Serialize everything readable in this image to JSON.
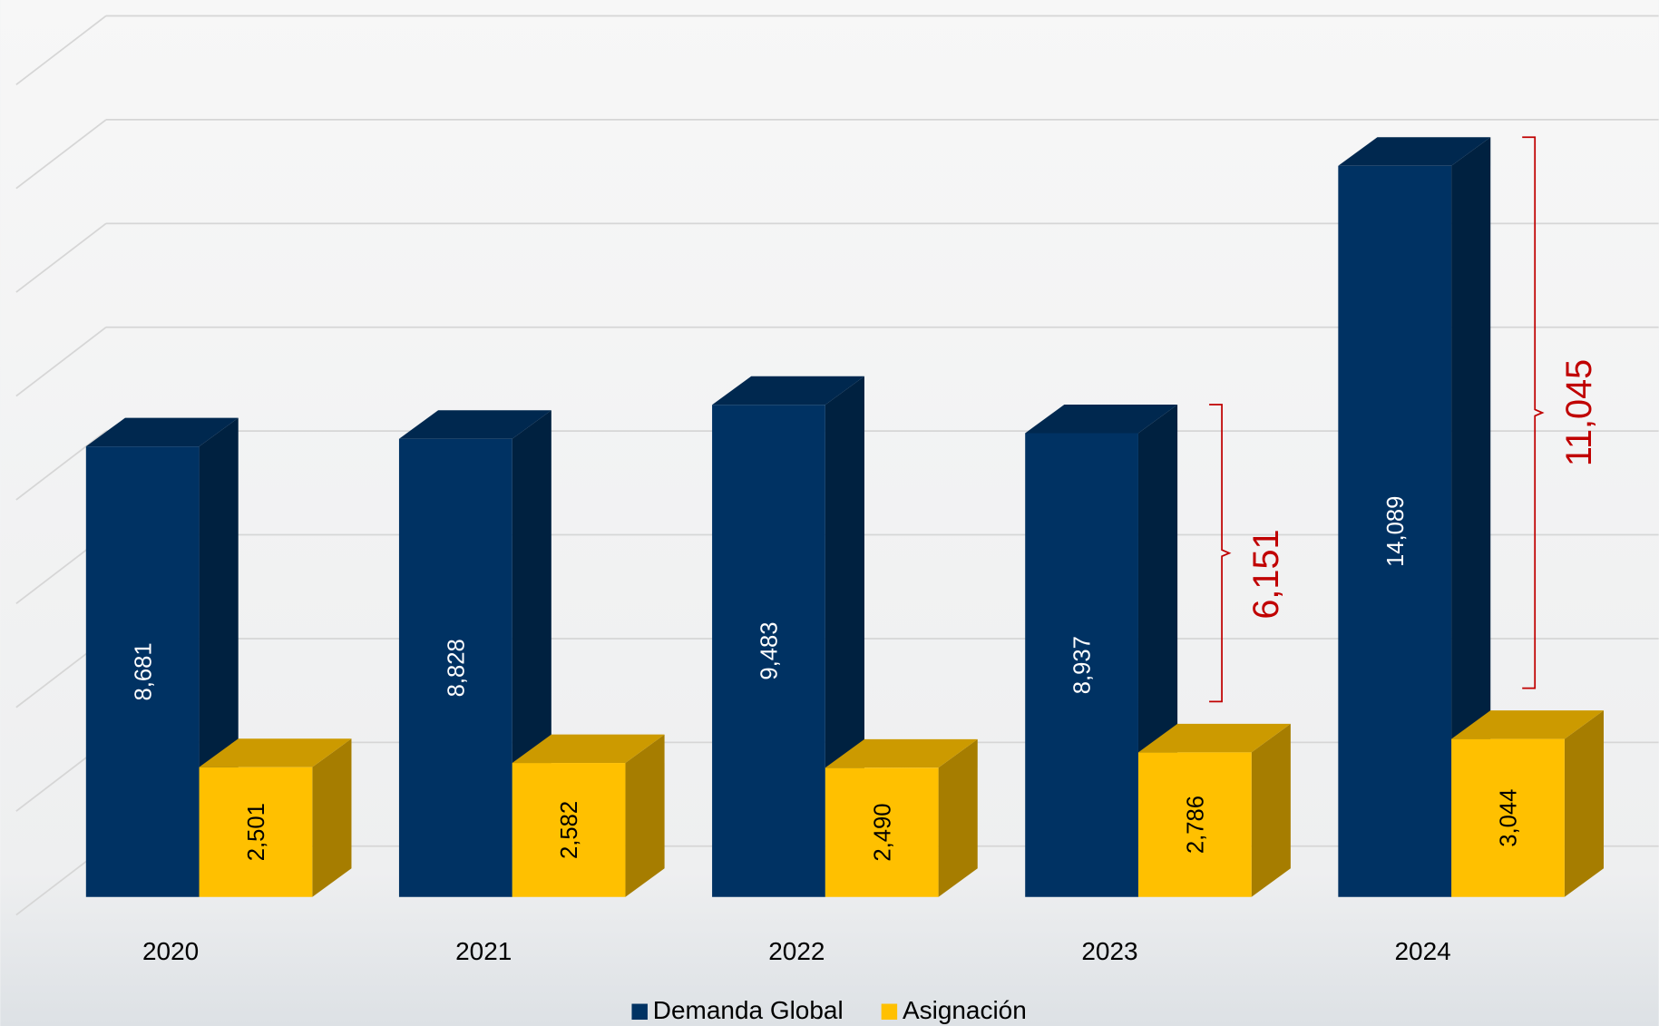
{
  "chart_data": {
    "type": "bar3d",
    "categories": [
      "2020",
      "2021",
      "2022",
      "2023",
      "2024"
    ],
    "series": [
      {
        "name": "Demanda Global",
        "color": "#003263",
        "values": [
          8681,
          8828,
          9483,
          8937,
          14089
        ],
        "value_labels": [
          "8,681",
          "8,828",
          "9,483",
          "8,937",
          "14,089"
        ]
      },
      {
        "name": "Asignación",
        "color": "#ffc000",
        "values": [
          2501,
          2582,
          2490,
          2786,
          3044
        ],
        "value_labels": [
          "2,501",
          "2,582",
          "2,490",
          "2,786",
          "3,044"
        ]
      }
    ],
    "ylim": [
      0,
      16000
    ],
    "yticks": [
      0,
      2000,
      4000,
      6000,
      8000,
      10000,
      12000,
      14000,
      16000
    ],
    "grid": true,
    "legend": "bottom",
    "annotations": [
      {
        "category": "2023",
        "value": 6151,
        "label": "6,151",
        "color": "#c00000"
      },
      {
        "category": "2024",
        "value": 11045,
        "label": "11,045",
        "color": "#c00000"
      }
    ]
  }
}
